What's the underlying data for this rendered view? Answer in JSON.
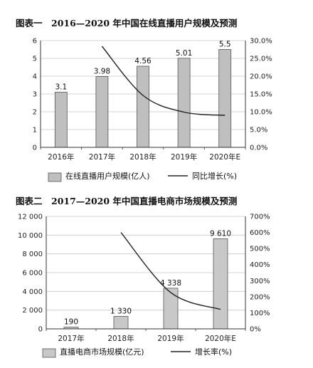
{
  "chart_data": [
    {
      "type": "bar",
      "title": "图表一　2016—2020 年中国在线直播用户规模及预测",
      "categories": [
        "2016年",
        "2017年",
        "2018年",
        "2019年",
        "2020年E"
      ],
      "series": [
        {
          "name": "在线直播用户规模(亿人)",
          "type": "bar",
          "axis": "left",
          "values": [
            3.1,
            3.98,
            4.56,
            5.01,
            5.5
          ],
          "value_labels": [
            "3.1",
            "3.98",
            "4.56",
            "5.01",
            "5.5"
          ]
        },
        {
          "name": "同比增长(%)",
          "type": "line",
          "axis": "right",
          "values": [
            null,
            28.4,
            14.6,
            9.9,
            9.0
          ]
        }
      ],
      "y_left": {
        "range": [
          0,
          6
        ],
        "ticks": [
          "0",
          "1",
          "2",
          "3",
          "4",
          "5",
          "6"
        ]
      },
      "y_right": {
        "range": [
          0,
          30
        ],
        "ticks": [
          "0.0%",
          "5.0%",
          "10.0%",
          "15.0%",
          "20.0%",
          "25.0%",
          "30.0%"
        ]
      },
      "grid": true,
      "legend": "bottom",
      "colors": {
        "bar": "#bfbfbf",
        "bar_edge": "#555555",
        "line": "#222222"
      }
    },
    {
      "type": "bar",
      "title": "图表二　2017—2020 年中国直播电商市场规模及预测",
      "categories": [
        "2017年",
        "2018年",
        "2019年",
        "2020年E"
      ],
      "series": [
        {
          "name": "直播电商市场规模(亿元)",
          "type": "bar",
          "axis": "left",
          "values": [
            190,
            1330,
            4338,
            9610
          ],
          "value_labels": [
            "190",
            "1 330",
            "4 338",
            "9 610"
          ]
        },
        {
          "name": "增长率(%)",
          "type": "line",
          "axis": "right",
          "values": [
            null,
            600,
            226,
            121
          ]
        }
      ],
      "y_left": {
        "range": [
          0,
          12000
        ],
        "ticks": [
          "0",
          "2 000",
          "4 000",
          "6 000",
          "8 000",
          "10 000",
          "12 000"
        ]
      },
      "y_right": {
        "range": [
          0,
          700
        ],
        "ticks": [
          "0%",
          "100%",
          "200%",
          "300%",
          "400%",
          "500%",
          "600%",
          "700%"
        ]
      },
      "grid": true,
      "legend": "bottom",
      "colors": {
        "bar": "#c8c8c8",
        "bar_edge": "#555555",
        "line": "#222222"
      }
    }
  ]
}
